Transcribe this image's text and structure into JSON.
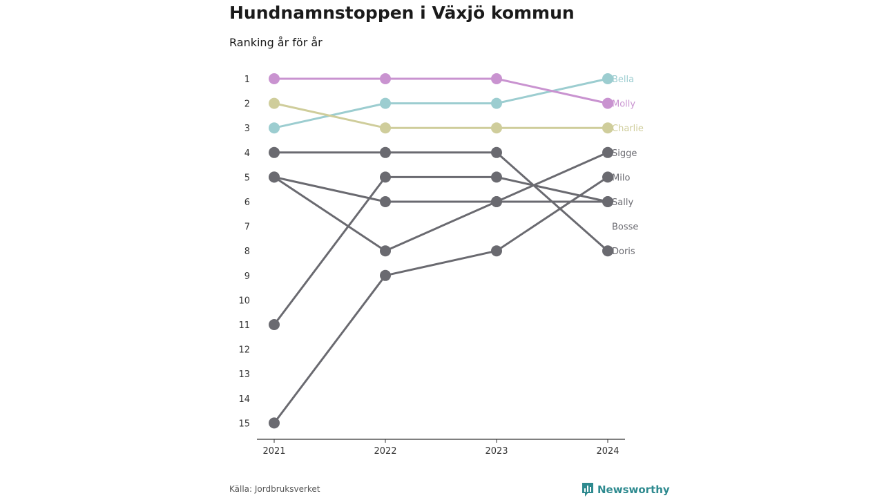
{
  "title": "Hundnamnstoppen i Växjö kommun",
  "subtitle": "Ranking år för år",
  "source": "Källa: Jordbruksverket",
  "brand": {
    "name": "Newsworthy",
    "icon": "newsworthy-logo-icon"
  },
  "colors": {
    "highlight_bella": "#9ccdd0",
    "highlight_molly": "#c993d0",
    "highlight_charlie": "#cfcd9b",
    "default": "#6a6a70",
    "axis": "#333333",
    "brand": "#2e8a8f"
  },
  "chart_data": {
    "type": "line",
    "x": [
      "2021",
      "2022",
      "2023",
      "2024"
    ],
    "ylim": [
      1,
      15
    ],
    "y_inverted": true,
    "y_ticks": [
      "1",
      "2",
      "3",
      "4",
      "5",
      "6",
      "7",
      "8",
      "9",
      "10",
      "11",
      "12",
      "13",
      "14",
      "15"
    ],
    "xlabel": "",
    "ylabel": "",
    "grid": false,
    "legend": "direct labels at right end of lines",
    "series": [
      {
        "name": "Bella",
        "values": [
          3,
          2,
          2,
          1
        ],
        "color": "#9ccdd0"
      },
      {
        "name": "Molly",
        "values": [
          1,
          1,
          1,
          2
        ],
        "color": "#c993d0"
      },
      {
        "name": "Charlie",
        "values": [
          2,
          3,
          3,
          3
        ],
        "color": "#cfcd9b"
      },
      {
        "name": "Sigge",
        "values": [
          5,
          8,
          6,
          4
        ],
        "color": "#6a6a70"
      },
      {
        "name": "Milo",
        "values": [
          15,
          9,
          8,
          5
        ],
        "color": "#6a6a70"
      },
      {
        "name": "Sally",
        "values": [
          11,
          5,
          5,
          6
        ],
        "color": "#6a6a70"
      },
      {
        "name": "Bosse",
        "values": [
          5,
          6,
          6,
          6
        ],
        "color": "#6a6a70"
      },
      {
        "name": "Doris",
        "values": [
          4,
          4,
          4,
          8
        ],
        "color": "#6a6a70"
      }
    ],
    "end_labels": [
      {
        "name": "Bella",
        "rank": 1,
        "color": "#9ccdd0"
      },
      {
        "name": "Molly",
        "rank": 2,
        "color": "#c993d0"
      },
      {
        "name": "Charlie",
        "rank": 3,
        "color": "#cfcd9b"
      },
      {
        "name": "Sigge",
        "rank": 4,
        "color": "#6a6a70"
      },
      {
        "name": "Milo",
        "rank": 5,
        "color": "#6a6a70"
      },
      {
        "name": "Sally",
        "rank": 6,
        "color": "#6a6a70"
      },
      {
        "name": "Bosse",
        "rank": 7,
        "color": "#6a6a70"
      },
      {
        "name": "Doris",
        "rank": 8,
        "color": "#6a6a70"
      }
    ]
  }
}
